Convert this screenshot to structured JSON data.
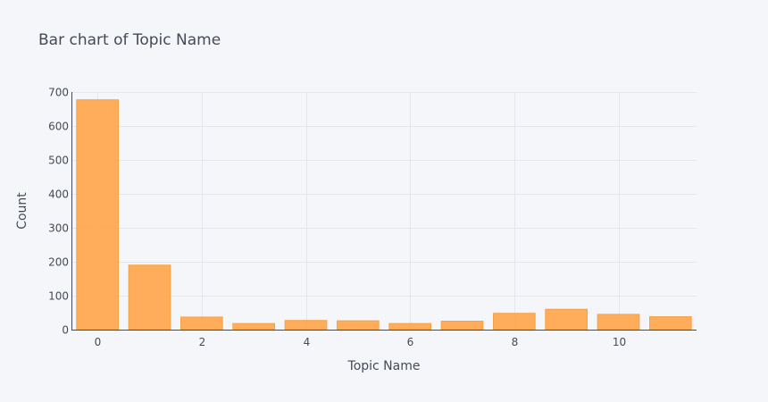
{
  "chart_data": {
    "type": "bar",
    "title": "Bar chart of Topic Name",
    "xlabel": "Topic Name",
    "ylabel": "Count",
    "x": [
      0,
      1,
      2,
      3,
      4,
      5,
      6,
      7,
      8,
      9,
      10,
      11
    ],
    "values": [
      677,
      190,
      37,
      18,
      27,
      26,
      18,
      25,
      48,
      60,
      45,
      38
    ],
    "x_ticks": [
      0,
      2,
      4,
      6,
      8,
      10
    ],
    "y_ticks": [
      0,
      100,
      200,
      300,
      400,
      500,
      600,
      700
    ],
    "xlim": [
      -0.5,
      11.5
    ],
    "ylim": [
      0,
      700
    ],
    "grid": true,
    "bar_color": "#ffa64d"
  }
}
